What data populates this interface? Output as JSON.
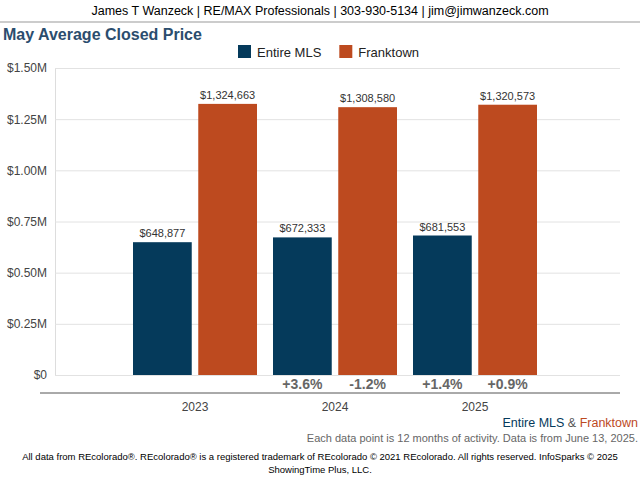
{
  "chart_data": {
    "type": "bar",
    "header": "James T Wanzeck | RE/MAX Professionals | 303-930-5134 | jim@jimwanzeck.com",
    "title": "May Average Closed Price",
    "categories": [
      "2023",
      "2024",
      "2025"
    ],
    "series": [
      {
        "name": "Entire MLS",
        "color": "#053a5b",
        "values": [
          648877,
          672333,
          681553
        ],
        "value_labels": [
          "$648,877",
          "$672,333",
          "$681,553"
        ],
        "change_labels": [
          null,
          "+3.6%",
          "+1.4%"
        ]
      },
      {
        "name": "Franktown",
        "color": "#bd4a1f",
        "values": [
          1324663,
          1308580,
          1320573
        ],
        "value_labels": [
          "$1,324,663",
          "$1,308,580",
          "$1,320,573"
        ],
        "change_labels": [
          null,
          "-1.2%",
          "+0.9%"
        ]
      }
    ],
    "ylim": [
      0,
      1500000
    ],
    "yticks": [
      {
        "value": 0,
        "label": "$0"
      },
      {
        "value": 250000,
        "label": "$0.25M"
      },
      {
        "value": 500000,
        "label": "$0.50M"
      },
      {
        "value": 750000,
        "label": "$0.75M"
      },
      {
        "value": 1000000,
        "label": "$1.00M"
      },
      {
        "value": 1250000,
        "label": "$1.25M"
      },
      {
        "value": 1500000,
        "label": "$1.50M"
      }
    ],
    "grid": true,
    "legend": "top",
    "data_labels": true,
    "caption": [
      "Entire MLS",
      "&",
      "Franktown"
    ],
    "note": "Each data point is 12 months of activity. Data is from June 13, 2025.",
    "footer": [
      "All data from REcolorado®. REcolorado® is a registered trademark of REcolorado © 2021 REcolorado. All rights reserved. InfoSparks © 2025",
      "ShowingTime Plus, LLC."
    ]
  }
}
